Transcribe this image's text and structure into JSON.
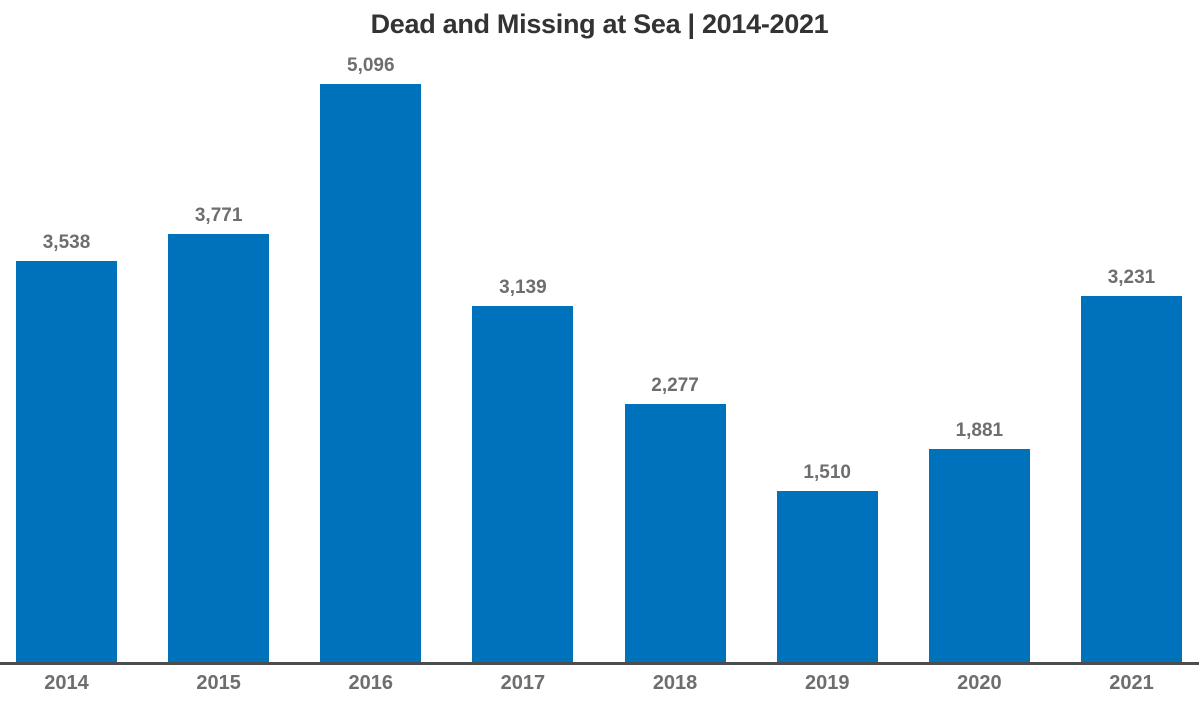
{
  "chart_data": {
    "type": "bar",
    "title": "Dead and Missing at Sea | 2014-2021",
    "categories": [
      "2014",
      "2015",
      "2016",
      "2017",
      "2018",
      "2019",
      "2020",
      "2021"
    ],
    "values": [
      3538,
      3771,
      5096,
      3139,
      2277,
      1510,
      1881,
      3231
    ],
    "value_labels": [
      "3,538",
      "3,771",
      "5,096",
      "3,139",
      "2,277",
      "1,510",
      "1,881",
      "3,231"
    ],
    "xlabel": "",
    "ylabel": "",
    "ylim": [
      0,
      5096
    ],
    "grid": false,
    "legend": "none",
    "colors": {
      "bar": "#0072bc",
      "value_label": "#6e6e6e",
      "tick_label": "#6e6e6e",
      "title": "#333333",
      "axis_line": "#4c4c4c",
      "background": "#ffffff"
    }
  }
}
